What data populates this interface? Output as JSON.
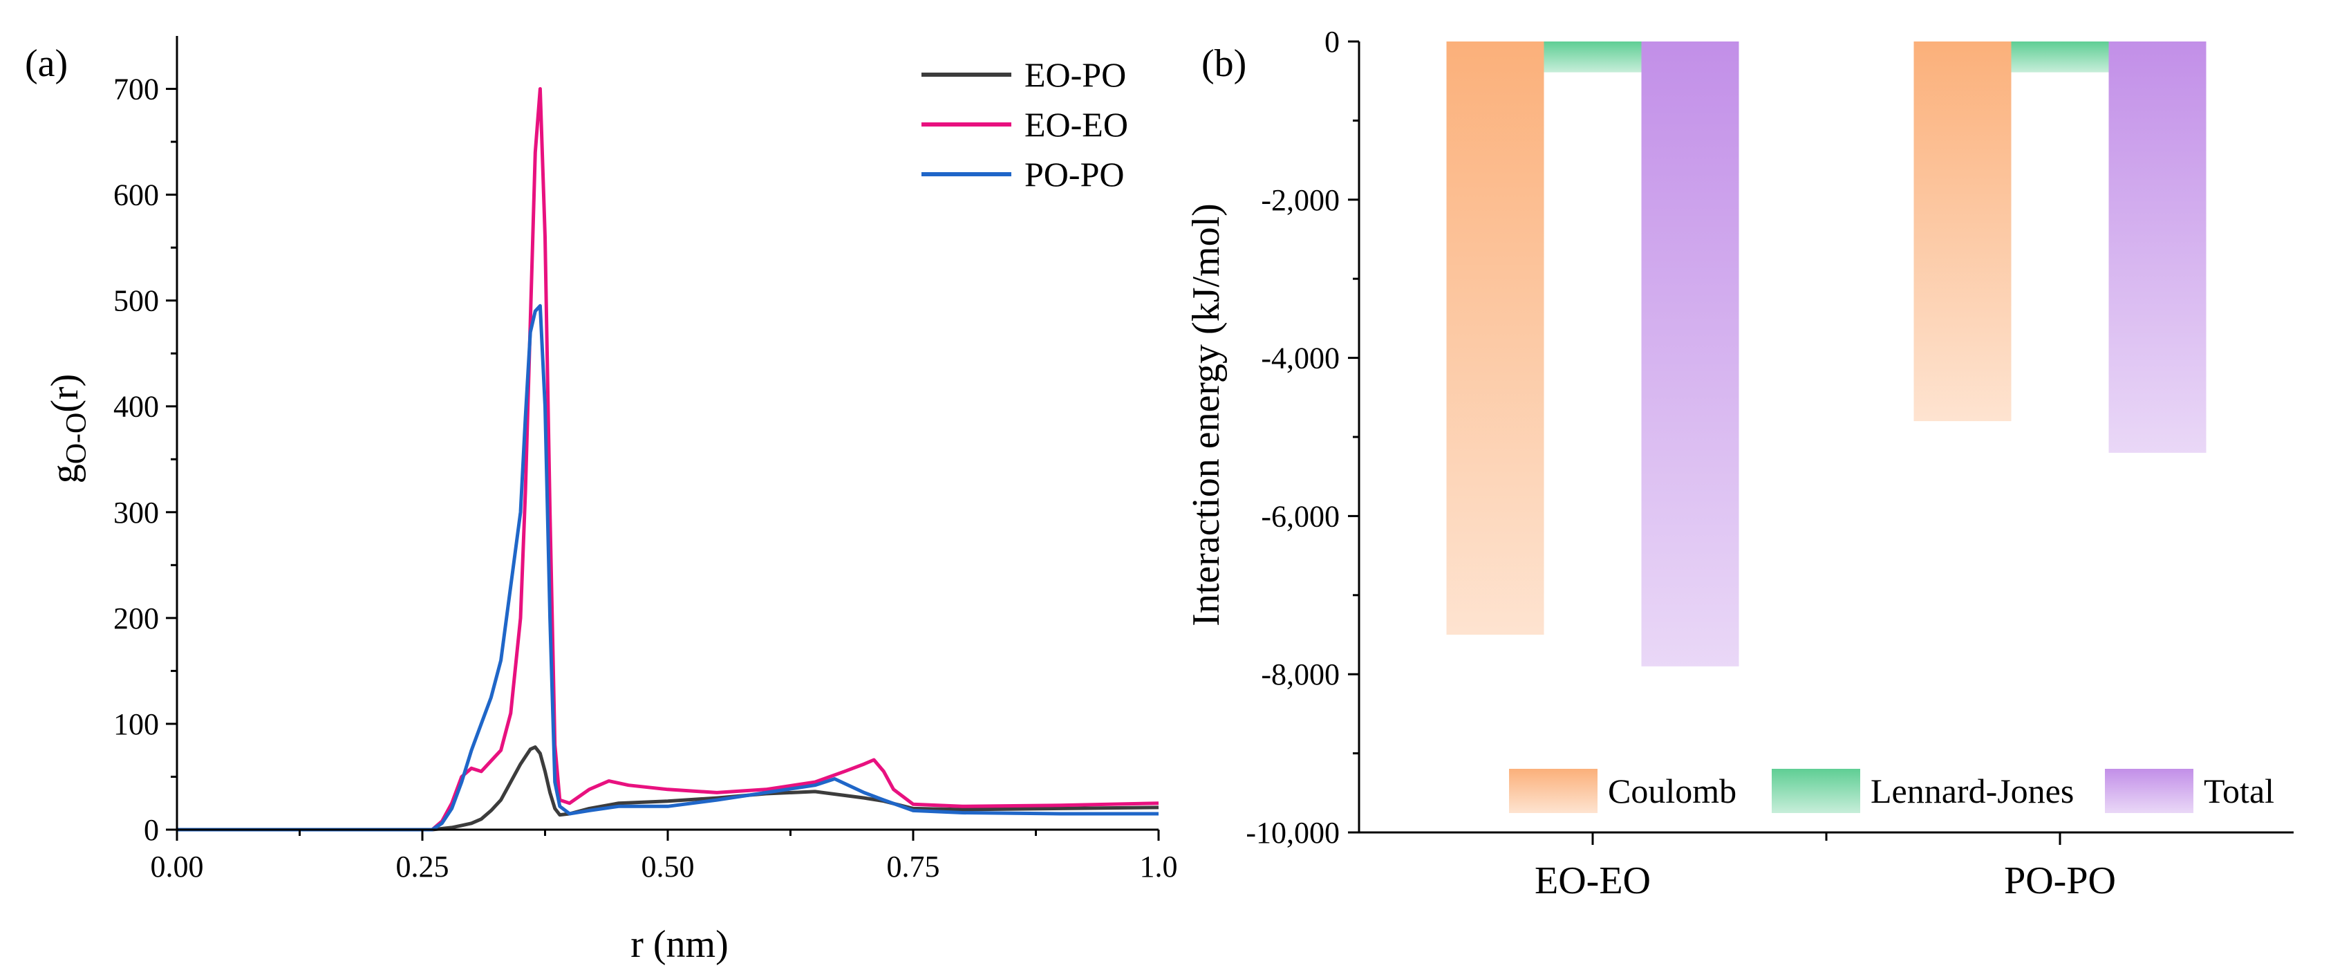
{
  "chart_data": [
    {
      "panel_label": "(a)",
      "type": "line",
      "title": "",
      "xlabel": "r (nm)",
      "ylabel_main": "g",
      "ylabel_sub": "O-O",
      "ylabel_tail": "(r)",
      "xlim": [
        0,
        1.0
      ],
      "ylim": [
        0,
        750
      ],
      "x_ticks": [
        0,
        0.25,
        0.5,
        0.75,
        1.0
      ],
      "x_tick_labels": [
        "0.00",
        "0.25",
        "0.50",
        "0.75",
        "1.0"
      ],
      "y_ticks": [
        0,
        100,
        200,
        300,
        400,
        500,
        600,
        700
      ],
      "y_tick_labels": [
        "0",
        "100",
        "200",
        "300",
        "400",
        "500",
        "600",
        "700"
      ],
      "legend_position": "top-right",
      "series": [
        {
          "name": "EO-PO",
          "color": "#3c3c3c",
          "x": [
            0,
            0.26,
            0.28,
            0.29,
            0.3,
            0.31,
            0.32,
            0.33,
            0.34,
            0.35,
            0.36,
            0.365,
            0.37,
            0.375,
            0.38,
            0.385,
            0.39,
            0.4,
            0.42,
            0.45,
            0.5,
            0.55,
            0.6,
            0.65,
            0.7,
            0.72,
            0.75,
            0.8,
            0.9,
            1.0
          ],
          "y": [
            0,
            0,
            2,
            4,
            6,
            10,
            18,
            28,
            45,
            62,
            76,
            78,
            72,
            55,
            35,
            20,
            14,
            15,
            20,
            25,
            27,
            30,
            34,
            36,
            30,
            27,
            20,
            19,
            20,
            21
          ]
        },
        {
          "name": "EO-EO",
          "color": "#e8117f",
          "x": [
            0,
            0.26,
            0.27,
            0.28,
            0.29,
            0.3,
            0.31,
            0.32,
            0.33,
            0.34,
            0.35,
            0.355,
            0.36,
            0.365,
            0.37,
            0.375,
            0.38,
            0.385,
            0.39,
            0.4,
            0.42,
            0.44,
            0.46,
            0.5,
            0.55,
            0.6,
            0.65,
            0.68,
            0.7,
            0.71,
            0.72,
            0.73,
            0.75,
            0.8,
            0.9,
            1.0
          ],
          "y": [
            0,
            0,
            8,
            25,
            50,
            58,
            55,
            65,
            75,
            110,
            200,
            320,
            480,
            640,
            700,
            560,
            300,
            80,
            28,
            25,
            38,
            46,
            42,
            38,
            35,
            38,
            45,
            55,
            62,
            66,
            55,
            38,
            24,
            22,
            23,
            25
          ]
        },
        {
          "name": "PO-PO",
          "color": "#1f66c8",
          "x": [
            0,
            0.26,
            0.27,
            0.28,
            0.29,
            0.3,
            0.31,
            0.32,
            0.33,
            0.34,
            0.35,
            0.355,
            0.36,
            0.365,
            0.37,
            0.375,
            0.38,
            0.385,
            0.39,
            0.4,
            0.42,
            0.45,
            0.5,
            0.55,
            0.6,
            0.65,
            0.67,
            0.7,
            0.72,
            0.75,
            0.8,
            0.9,
            1.0
          ],
          "y": [
            0,
            0,
            6,
            20,
            45,
            75,
            100,
            125,
            160,
            230,
            300,
            390,
            470,
            490,
            495,
            400,
            200,
            45,
            22,
            15,
            18,
            22,
            22,
            28,
            35,
            42,
            48,
            35,
            28,
            18,
            16,
            15,
            15
          ]
        }
      ]
    },
    {
      "panel_label": "(b)",
      "type": "bar",
      "title": "",
      "xlabel": "",
      "ylabel": "Interaction energy (kJ/mol)",
      "ylim": [
        -10000,
        0
      ],
      "y_ticks": [
        0,
        -2000,
        -4000,
        -6000,
        -8000,
        -10000
      ],
      "y_tick_labels": [
        "0",
        "-2,000",
        "-4,000",
        "-6,000",
        "-8,000",
        "-10,000"
      ],
      "categories": [
        "EO-EO",
        "PO-PO"
      ],
      "legend_position": "bottom-right",
      "series": [
        {
          "name": "Coulomb",
          "color": "#fbb07a",
          "values": [
            -7500,
            -4800
          ]
        },
        {
          "name": "Lennard-Jones",
          "color": "#5fce94",
          "values": [
            -390,
            -390
          ]
        },
        {
          "name": "Total",
          "color": "#c28fe8",
          "values": [
            -7900,
            -5200
          ]
        }
      ]
    }
  ]
}
